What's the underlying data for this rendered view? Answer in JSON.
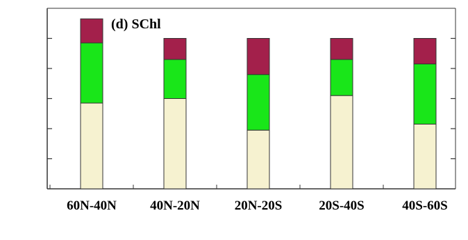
{
  "chart_data": {
    "type": "bar",
    "stacked": true,
    "title": "(d) SChl",
    "categories": [
      "60N-40N",
      "40N-20N",
      "20N-20S",
      "20S-40S",
      "40S-60S"
    ],
    "series": [
      {
        "color": "#f6f2d0",
        "values": [
          0.57,
          0.6,
          0.39,
          0.62,
          0.43
        ]
      },
      {
        "color": "#19e619",
        "values": [
          0.4,
          0.26,
          0.37,
          0.24,
          0.4
        ]
      },
      {
        "color": "#a3204b",
        "values": [
          0.16,
          0.14,
          0.24,
          0.14,
          0.17
        ]
      }
    ],
    "ylim": [
      0,
      1.2
    ],
    "grid": false,
    "xlabel": "",
    "ylabel": ""
  }
}
